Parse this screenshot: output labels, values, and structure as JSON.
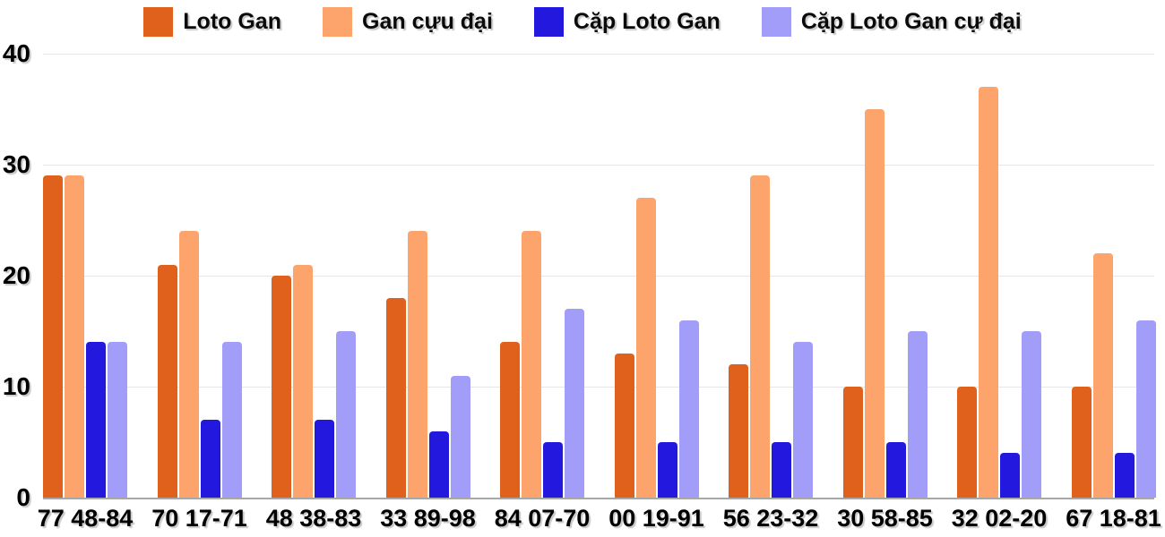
{
  "chart_data": {
    "type": "bar",
    "title": "",
    "xlabel": "",
    "ylabel": "",
    "ylim": [
      0,
      40
    ],
    "yticks": [
      0,
      10,
      20,
      30,
      40
    ],
    "grid": true,
    "legend_position": "top-center",
    "background_color": "#ffffff",
    "gridline_color": "#e6e6e6",
    "axis_line_color": "#a8a8a8",
    "categories": [
      "77 48-84",
      "70 17-71",
      "48 38-83",
      "33 89-98",
      "84 07-70",
      "00 19-91",
      "56 23-32",
      "30 58-85",
      "32 02-20",
      "67 18-81"
    ],
    "series": [
      {
        "key": "loto-gan",
        "name": "Loto Gan",
        "color": "#e0611c",
        "values": [
          29,
          21,
          20,
          18,
          14,
          13,
          12,
          10,
          10,
          10
        ]
      },
      {
        "key": "gan-cuu-dai",
        "name": "Gan cựu đại",
        "color": "#fca46c",
        "values": [
          29,
          24,
          21,
          24,
          24,
          27,
          29,
          35,
          37,
          22
        ]
      },
      {
        "key": "cap-loto-gan",
        "name": "Cặp Loto Gan",
        "color": "#2318de",
        "values": [
          14,
          7,
          7,
          6,
          5,
          5,
          5,
          5,
          4,
          4
        ]
      },
      {
        "key": "cap-loto-gan-cu-dai",
        "name": "Cặp Loto Gan cự đại",
        "color": "#a29df8",
        "values": [
          14,
          14,
          15,
          11,
          17,
          16,
          14,
          15,
          15,
          16
        ]
      }
    ]
  }
}
